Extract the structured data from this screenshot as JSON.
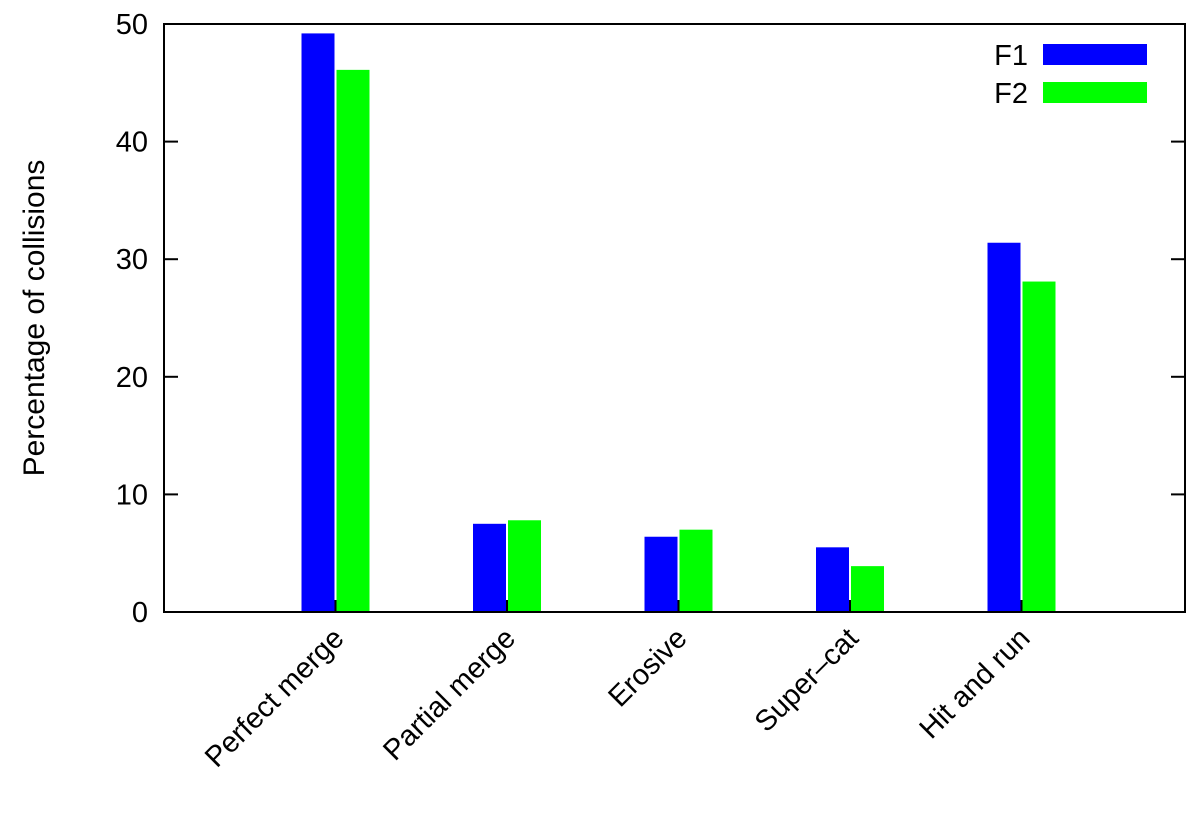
{
  "chart_data": {
    "type": "bar",
    "categories": [
      "Perfect merge",
      "Partial merge",
      "Erosive",
      "Super–cat",
      "Hit and run"
    ],
    "series": [
      {
        "name": "F1",
        "color": "#0000ff",
        "values": [
          49.2,
          7.5,
          6.4,
          5.5,
          31.4
        ]
      },
      {
        "name": "F2",
        "color": "#00ff00",
        "values": [
          46.1,
          7.8,
          7.0,
          3.9,
          28.1
        ]
      }
    ],
    "title": "",
    "xlabel": "",
    "ylabel": "Percentage of collisions",
    "ylim": [
      0,
      50
    ],
    "yticks": [
      0,
      10,
      20,
      30,
      40,
      50
    ],
    "grid": false,
    "legend_position": "top-right"
  }
}
